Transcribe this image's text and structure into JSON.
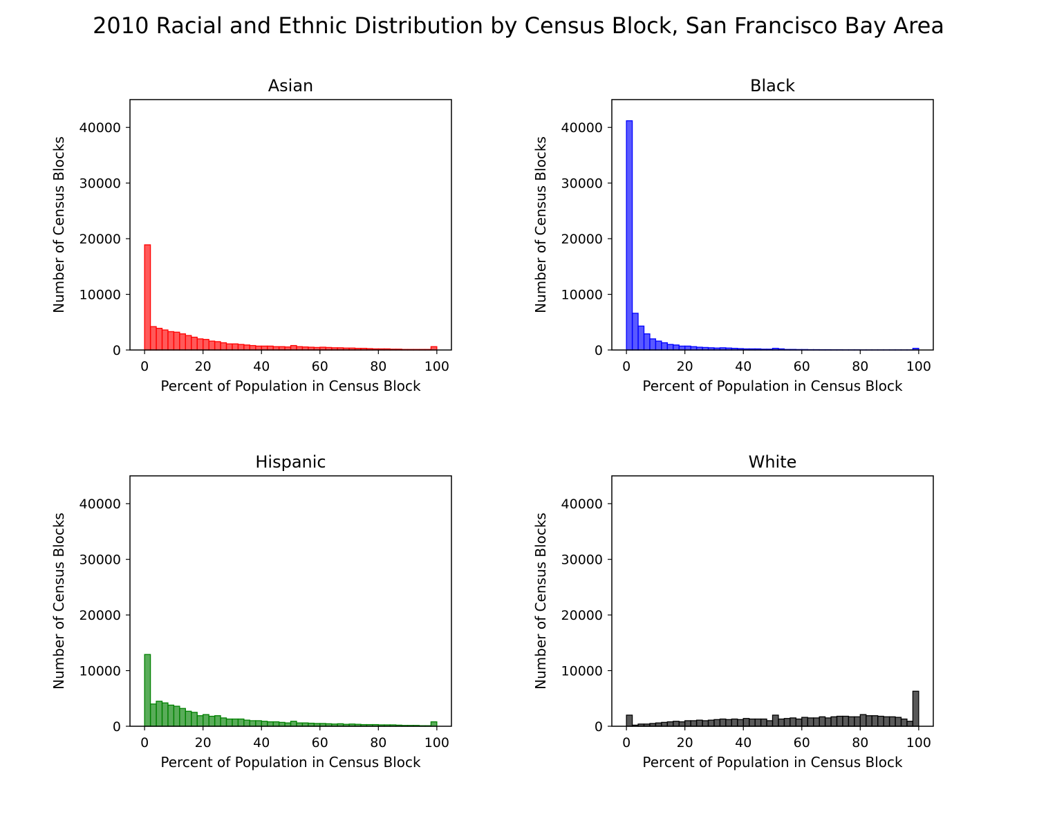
{
  "figure": {
    "title": "2010 Racial and Ethnic Distribution by Census Block, San Francisco Bay Area"
  },
  "chart_data": [
    {
      "type": "bar",
      "title": "Asian",
      "xlabel": "Percent of Population in Census Block",
      "ylabel": "Number of Census Blocks",
      "color": "#ff0000",
      "xlim": [
        -5,
        105
      ],
      "ylim": [
        0,
        45000
      ],
      "xticks": [
        0,
        20,
        40,
        60,
        80,
        100
      ],
      "yticks": [
        0,
        10000,
        20000,
        30000,
        40000
      ],
      "bin_width": 2,
      "bin_starts": [
        0,
        2,
        4,
        6,
        8,
        10,
        12,
        14,
        16,
        18,
        20,
        22,
        24,
        26,
        28,
        30,
        32,
        34,
        36,
        38,
        40,
        42,
        44,
        46,
        48,
        50,
        52,
        54,
        56,
        58,
        60,
        62,
        64,
        66,
        68,
        70,
        72,
        74,
        76,
        78,
        80,
        82,
        84,
        86,
        88,
        90,
        92,
        94,
        96,
        98
      ],
      "values": [
        18900,
        4200,
        3900,
        3600,
        3300,
        3200,
        2900,
        2600,
        2300,
        2000,
        1900,
        1600,
        1500,
        1300,
        1100,
        1100,
        1000,
        900,
        800,
        700,
        700,
        700,
        600,
        600,
        550,
        800,
        600,
        550,
        500,
        450,
        500,
        450,
        400,
        400,
        350,
        350,
        300,
        300,
        250,
        200,
        200,
        200,
        150,
        150,
        100,
        100,
        100,
        100,
        100,
        600
      ]
    },
    {
      "type": "bar",
      "title": "Black",
      "xlabel": "Percent of Population in Census Block",
      "ylabel": "Number of Census Blocks",
      "color": "#0000ff",
      "xlim": [
        -5,
        105
      ],
      "ylim": [
        0,
        45000
      ],
      "xticks": [
        0,
        20,
        40,
        60,
        80,
        100
      ],
      "yticks": [
        0,
        10000,
        20000,
        30000,
        40000
      ],
      "bin_width": 2,
      "bin_starts": [
        0,
        2,
        4,
        6,
        8,
        10,
        12,
        14,
        16,
        18,
        20,
        22,
        24,
        26,
        28,
        30,
        32,
        34,
        36,
        38,
        40,
        42,
        44,
        46,
        48,
        50,
        52,
        54,
        56,
        58,
        60,
        62,
        64,
        66,
        68,
        70,
        72,
        74,
        76,
        78,
        80,
        82,
        84,
        86,
        88,
        90,
        92,
        94,
        96,
        98
      ],
      "values": [
        41200,
        6600,
        4300,
        2900,
        2000,
        1600,
        1300,
        1000,
        900,
        700,
        700,
        600,
        500,
        450,
        400,
        350,
        400,
        350,
        300,
        250,
        200,
        200,
        200,
        150,
        150,
        300,
        200,
        100,
        100,
        80,
        80,
        60,
        60,
        50,
        50,
        40,
        40,
        30,
        30,
        30,
        20,
        20,
        20,
        20,
        20,
        20,
        20,
        20,
        20,
        300
      ]
    },
    {
      "type": "bar",
      "title": "Hispanic",
      "xlabel": "Percent of Population in Census Block",
      "ylabel": "Number of Census Blocks",
      "color": "#008000",
      "xlim": [
        -5,
        105
      ],
      "ylim": [
        0,
        45000
      ],
      "xticks": [
        0,
        20,
        40,
        60,
        80,
        100
      ],
      "yticks": [
        0,
        10000,
        20000,
        30000,
        40000
      ],
      "bin_width": 2,
      "bin_starts": [
        0,
        2,
        4,
        6,
        8,
        10,
        12,
        14,
        16,
        18,
        20,
        22,
        24,
        26,
        28,
        30,
        32,
        34,
        36,
        38,
        40,
        42,
        44,
        46,
        48,
        50,
        52,
        54,
        56,
        58,
        60,
        62,
        64,
        66,
        68,
        70,
        72,
        74,
        76,
        78,
        80,
        82,
        84,
        86,
        88,
        90,
        92,
        94,
        96,
        98
      ],
      "values": [
        12900,
        4000,
        4500,
        4200,
        3800,
        3600,
        3200,
        2700,
        2500,
        1900,
        2100,
        1800,
        1900,
        1500,
        1300,
        1300,
        1300,
        1100,
        1000,
        1000,
        900,
        800,
        800,
        700,
        600,
        900,
        600,
        600,
        550,
        500,
        500,
        450,
        400,
        450,
        350,
        400,
        350,
        300,
        300,
        300,
        250,
        250,
        250,
        200,
        150,
        150,
        150,
        100,
        100,
        800
      ]
    },
    {
      "type": "bar",
      "title": "White",
      "xlabel": "Percent of Population in Census Block",
      "ylabel": "Number of Census Blocks",
      "color": "#000000",
      "xlim": [
        -5,
        105
      ],
      "ylim": [
        0,
        45000
      ],
      "xticks": [
        0,
        20,
        40,
        60,
        80,
        100
      ],
      "yticks": [
        0,
        10000,
        20000,
        30000,
        40000
      ],
      "bin_width": 2,
      "bin_starts": [
        0,
        2,
        4,
        6,
        8,
        10,
        12,
        14,
        16,
        18,
        20,
        22,
        24,
        26,
        28,
        30,
        32,
        34,
        36,
        38,
        40,
        42,
        44,
        46,
        48,
        50,
        52,
        54,
        56,
        58,
        60,
        62,
        64,
        66,
        68,
        70,
        72,
        74,
        76,
        78,
        80,
        82,
        84,
        86,
        88,
        90,
        92,
        94,
        96,
        98
      ],
      "values": [
        2000,
        200,
        400,
        400,
        500,
        600,
        700,
        800,
        900,
        800,
        1000,
        1000,
        1100,
        1000,
        1100,
        1200,
        1300,
        1200,
        1300,
        1200,
        1400,
        1300,
        1300,
        1300,
        1000,
        2000,
        1300,
        1400,
        1500,
        1300,
        1600,
        1500,
        1500,
        1700,
        1500,
        1700,
        1800,
        1800,
        1700,
        1700,
        2100,
        1900,
        1900,
        1800,
        1700,
        1700,
        1600,
        1300,
        900,
        6300
      ]
    }
  ]
}
